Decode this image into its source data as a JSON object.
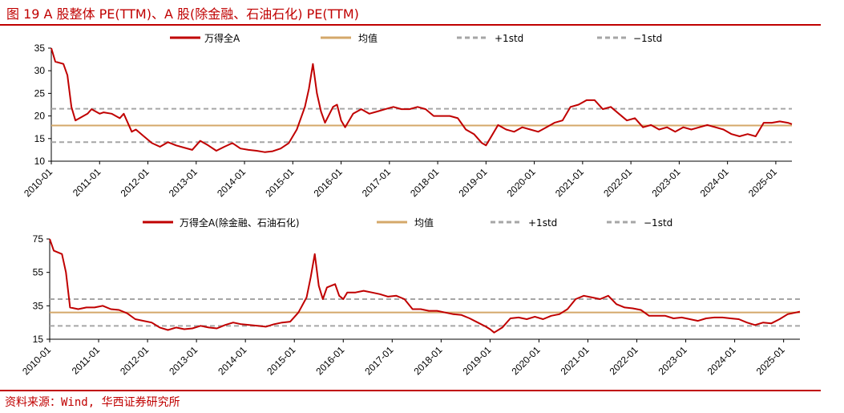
{
  "title": "图 19 A 股整体 PE(TTM)、A 股(除金融、石油石化) PE(TTM)",
  "source": "资料来源：Wind, 华西证券研究所",
  "colors": {
    "accent": "#c00000",
    "series": "#c00000",
    "mean": "#d4a86a",
    "std": "#a6a6a6"
  },
  "chart_data": [
    {
      "type": "line",
      "x_ticks": [
        "2010-01",
        "2011-01",
        "2012-01",
        "2013-01",
        "2014-01",
        "2015-01",
        "2016-01",
        "2017-01",
        "2018-01",
        "2019-01",
        "2020-01",
        "2021-01",
        "2022-01",
        "2023-01",
        "2024-01",
        "2025-01"
      ],
      "y_ticks": [
        10,
        15,
        20,
        25,
        30,
        35
      ],
      "ylim": [
        10,
        35
      ],
      "xlim": [
        "2010-01",
        "2025-05"
      ],
      "legend": [
        "万得全A",
        "均值",
        "+1std",
        "−1std"
      ],
      "mean": 17.9,
      "plus_std": 21.6,
      "minus_std": 14.2,
      "series": [
        {
          "name": "万得全A",
          "x": [
            "2010-01",
            "2010-02",
            "2010-04",
            "2010-05",
            "2010-06",
            "2010-07",
            "2010-08",
            "2010-10",
            "2010-11",
            "2011-01",
            "2011-02",
            "2011-04",
            "2011-06",
            "2011-07",
            "2011-09",
            "2011-10",
            "2011-12",
            "2012-02",
            "2012-04",
            "2012-06",
            "2012-08",
            "2012-10",
            "2012-12",
            "2013-02",
            "2013-04",
            "2013-06",
            "2013-08",
            "2013-10",
            "2013-12",
            "2014-02",
            "2014-04",
            "2014-06",
            "2014-08",
            "2014-10",
            "2014-12",
            "2015-02",
            "2015-04",
            "2015-05",
            "2015-06",
            "2015-07",
            "2015-08",
            "2015-09",
            "2015-11",
            "2015-12",
            "2016-01",
            "2016-02",
            "2016-04",
            "2016-06",
            "2016-08",
            "2016-10",
            "2016-12",
            "2017-02",
            "2017-04",
            "2017-06",
            "2017-08",
            "2017-10",
            "2017-12",
            "2018-02",
            "2018-04",
            "2018-06",
            "2018-08",
            "2018-10",
            "2018-12",
            "2019-01",
            "2019-02",
            "2019-04",
            "2019-06",
            "2019-08",
            "2019-10",
            "2019-12",
            "2020-02",
            "2020-04",
            "2020-06",
            "2020-08",
            "2020-10",
            "2020-12",
            "2021-02",
            "2021-04",
            "2021-06",
            "2021-08",
            "2021-10",
            "2021-12",
            "2022-02",
            "2022-04",
            "2022-06",
            "2022-08",
            "2022-10",
            "2022-12",
            "2023-02",
            "2023-04",
            "2023-06",
            "2023-08",
            "2023-10",
            "2023-12",
            "2024-02",
            "2024-04",
            "2024-06",
            "2024-08",
            "2024-10",
            "2024-12",
            "2025-02",
            "2025-04",
            "2025-05"
          ],
          "values": [
            35,
            32,
            31.5,
            29,
            22,
            19,
            19.5,
            20.5,
            21.5,
            20.5,
            20.8,
            20.5,
            19.5,
            20.5,
            16.5,
            17,
            15.5,
            14,
            13.2,
            14.2,
            13.5,
            13,
            12.5,
            14.5,
            13.5,
            12.3,
            13.2,
            14,
            12.8,
            12.5,
            12.3,
            12,
            12.2,
            12.8,
            14,
            17,
            22,
            26,
            31.5,
            25,
            21,
            18.5,
            22,
            22.5,
            19,
            17.5,
            20.5,
            21.5,
            20.5,
            21,
            21.5,
            22,
            21.5,
            21.5,
            22,
            21.5,
            20,
            20,
            20,
            19.5,
            17,
            16,
            14,
            13.5,
            15,
            18,
            17,
            16.5,
            17.5,
            17,
            16.5,
            17.5,
            18.5,
            19,
            22,
            22.5,
            23.5,
            23.5,
            21.5,
            22,
            20.5,
            19,
            19.5,
            17.5,
            18,
            17,
            17.5,
            16.5,
            17.5,
            17,
            17.5,
            18,
            17.5,
            17,
            16,
            15.5,
            16,
            15.5,
            18.5,
            18.5,
            18.8,
            18.5,
            18.2
          ]
        }
      ]
    },
    {
      "type": "line",
      "x_ticks": [
        "2010-01",
        "2011-01",
        "2012-01",
        "2013-01",
        "2014-01",
        "2015-01",
        "2016-01",
        "2017-01",
        "2018-01",
        "2019-01",
        "2020-01",
        "2021-01",
        "2022-01",
        "2023-01",
        "2024-01",
        "2025-01"
      ],
      "y_ticks": [
        15,
        35,
        55,
        75
      ],
      "ylim": [
        15,
        75
      ],
      "xlim": [
        "2010-01",
        "2025-05"
      ],
      "legend": [
        "万得全A(除金融、石油石化)",
        "均值",
        "+1std",
        "−1std"
      ],
      "mean": 31,
      "plus_std": 39,
      "minus_std": 23,
      "series": [
        {
          "name": "万得全A(除金融、石油石化)",
          "x": [
            "2010-01",
            "2010-02",
            "2010-04",
            "2010-05",
            "2010-06",
            "2010-08",
            "2010-10",
            "2010-12",
            "2011-02",
            "2011-04",
            "2011-06",
            "2011-08",
            "2011-10",
            "2011-12",
            "2012-02",
            "2012-04",
            "2012-06",
            "2012-08",
            "2012-10",
            "2012-12",
            "2013-02",
            "2013-04",
            "2013-06",
            "2013-08",
            "2013-10",
            "2013-12",
            "2014-02",
            "2014-04",
            "2014-06",
            "2014-08",
            "2014-10",
            "2014-12",
            "2015-02",
            "2015-04",
            "2015-05",
            "2015-06",
            "2015-07",
            "2015-08",
            "2015-09",
            "2015-11",
            "2015-12",
            "2016-01",
            "2016-02",
            "2016-04",
            "2016-06",
            "2016-08",
            "2016-10",
            "2016-12",
            "2017-02",
            "2017-04",
            "2017-06",
            "2017-08",
            "2017-10",
            "2017-12",
            "2018-02",
            "2018-04",
            "2018-06",
            "2018-08",
            "2018-10",
            "2018-12",
            "2019-01",
            "2019-02",
            "2019-04",
            "2019-06",
            "2019-08",
            "2019-10",
            "2019-12",
            "2020-02",
            "2020-04",
            "2020-06",
            "2020-08",
            "2020-10",
            "2020-12",
            "2021-02",
            "2021-04",
            "2021-06",
            "2021-08",
            "2021-10",
            "2021-12",
            "2022-02",
            "2022-04",
            "2022-06",
            "2022-08",
            "2022-10",
            "2022-12",
            "2023-02",
            "2023-04",
            "2023-06",
            "2023-08",
            "2023-10",
            "2023-12",
            "2024-02",
            "2024-04",
            "2024-06",
            "2024-08",
            "2024-10",
            "2024-12",
            "2025-02",
            "2025-04",
            "2025-05"
          ],
          "values": [
            75,
            68,
            66,
            55,
            34,
            33,
            34,
            34,
            35,
            33,
            32.5,
            30.5,
            27,
            26,
            25,
            22,
            20.5,
            22,
            21,
            21.5,
            23,
            22,
            21.5,
            23.5,
            25,
            24,
            23.5,
            23,
            22.5,
            24,
            25,
            25.5,
            31,
            40,
            52,
            66,
            47,
            39,
            46,
            48,
            41,
            39,
            43,
            43,
            44,
            43,
            42,
            40.5,
            41,
            39,
            33,
            33,
            32,
            32,
            31,
            30,
            29.5,
            27.5,
            25,
            22.5,
            21,
            19,
            22,
            27.5,
            28,
            27,
            28.5,
            27,
            29,
            30,
            33,
            39,
            41,
            40,
            39,
            41,
            36,
            34,
            33.5,
            32.5,
            29,
            29,
            29,
            27.5,
            28,
            27,
            26,
            27.5,
            28,
            28,
            27.5,
            27,
            25,
            23.5,
            25,
            24.5,
            27,
            30,
            31,
            31.5
          ]
        }
      ]
    }
  ]
}
